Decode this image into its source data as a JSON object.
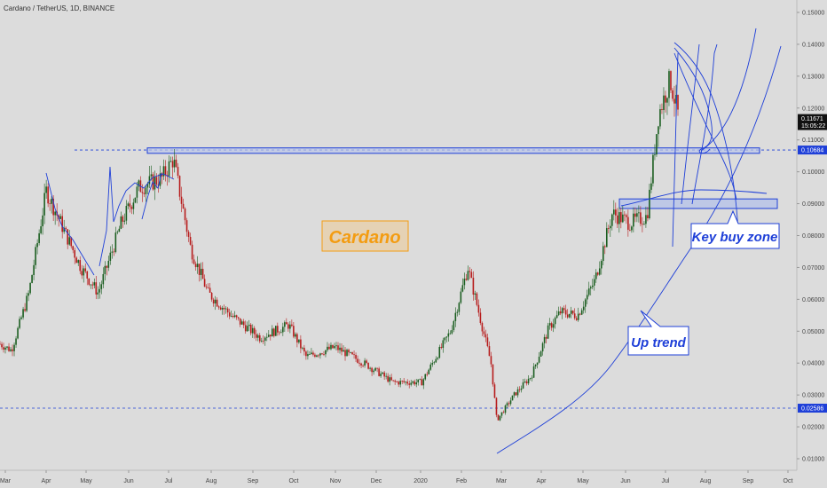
{
  "header": {
    "symbol_title": "Cardano / TetherUS, 1D, BINANCE"
  },
  "colors": {
    "background": "#dcdcdc",
    "up_candle": "#1b5e20",
    "down_candle": "#b71c1c",
    "drawing_blue": "#1e3fd8",
    "zone_fill": "#b9c4e8",
    "label_orange": "#f39c12",
    "last_price_bg": "#111111",
    "line_price_bg": "#1e3fd8"
  },
  "chart_data": {
    "type": "candlestick",
    "y_ticks": [
      "0.15000",
      "0.14000",
      "0.13000",
      "0.12000",
      "0.11000",
      "0.10000",
      "0.09000",
      "0.08000",
      "0.07000",
      "0.06000",
      "0.05000",
      "0.04000",
      "0.03000",
      "0.02000",
      "0.01000"
    ],
    "y_tick_values": [
      0.15,
      0.14,
      0.13,
      0.12,
      0.11,
      0.1,
      0.09,
      0.08,
      0.07,
      0.06,
      0.05,
      0.04,
      0.03,
      0.02,
      0.01
    ],
    "x_ticks": [
      "Mar",
      "Apr",
      "May",
      "Jun",
      "Jul",
      "Aug",
      "Sep",
      "Oct",
      "Nov",
      "Dec",
      "2020",
      "Feb",
      "Mar",
      "Apr",
      "May",
      "Jun",
      "Jul",
      "Aug",
      "Sep",
      "Oct"
    ],
    "price_labels": [
      {
        "text": "0.11671",
        "value": 0.11671,
        "style": "last"
      },
      {
        "text": "15:05:22",
        "value": 0.1145,
        "style": "timer"
      },
      {
        "text": "0.10684",
        "value": 0.10684,
        "style": "line"
      },
      {
        "text": "0.02586",
        "value": 0.02586,
        "style": "line"
      }
    ],
    "horizontal_lines": [
      0.10684,
      0.02586
    ],
    "key_points": [
      [
        0.0,
        0.046
      ],
      [
        0.02,
        0.044
      ],
      [
        0.05,
        0.062
      ],
      [
        0.08,
        0.094
      ],
      [
        0.11,
        0.082
      ],
      [
        0.14,
        0.07
      ],
      [
        0.17,
        0.062
      ],
      [
        0.21,
        0.084
      ],
      [
        0.24,
        0.095
      ],
      [
        0.28,
        0.098
      ],
      [
        0.3,
        0.104
      ],
      [
        0.33,
        0.076
      ],
      [
        0.36,
        0.062
      ],
      [
        0.4,
        0.055
      ],
      [
        0.45,
        0.048
      ],
      [
        0.5,
        0.052
      ],
      [
        0.53,
        0.042
      ],
      [
        0.58,
        0.045
      ],
      [
        0.63,
        0.04
      ],
      [
        0.68,
        0.034
      ],
      [
        0.73,
        0.034
      ],
      [
        0.78,
        0.05
      ],
      [
        0.81,
        0.07
      ],
      [
        0.83,
        0.055
      ],
      [
        0.85,
        0.04
      ],
      [
        0.86,
        0.022
      ],
      [
        0.89,
        0.03
      ],
      [
        0.92,
        0.036
      ],
      [
        0.95,
        0.051
      ],
      [
        0.97,
        0.056
      ],
      [
        1.0,
        0.055
      ],
      [
        1.03,
        0.066
      ],
      [
        1.06,
        0.087
      ],
      [
        1.09,
        0.084
      ],
      [
        1.12,
        0.086
      ],
      [
        1.14,
        0.118
      ],
      [
        1.16,
        0.129
      ],
      [
        1.175,
        0.117
      ]
    ],
    "annotations": [
      {
        "text": "Cardano",
        "kind": "title-box"
      },
      {
        "text": "Key buy zone",
        "kind": "callout"
      },
      {
        "text": "Up trend",
        "kind": "callout"
      }
    ],
    "zones": [
      {
        "name": "resistance-band",
        "from": 0.1058,
        "to": 0.1075
      },
      {
        "name": "key-buy-zone",
        "from": 0.0885,
        "to": 0.0915
      }
    ]
  }
}
